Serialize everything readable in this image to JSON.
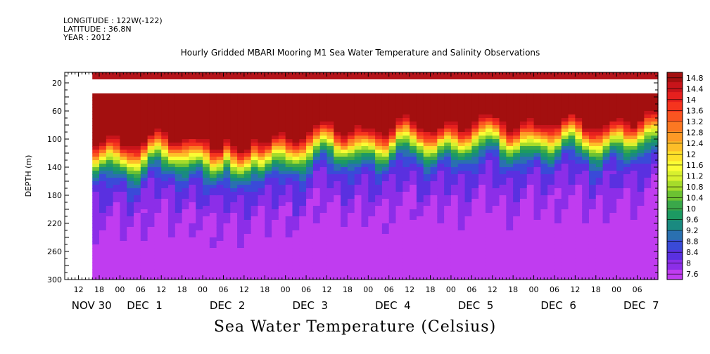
{
  "header": {
    "longitude": "LONGITUDE : 122W(-122)",
    "latitude": "LATITUDE : 36.8N",
    "year": "YEAR : 2012"
  },
  "chart_data": {
    "type": "heatmap",
    "title": "Hourly Gridded MBARI Mooring M1 Sea Water Temperature and Salinity Observations",
    "xlabel": "Sea Water Temperature (Celsius)",
    "ylabel": "DEPTH (m)",
    "ylim": [
      300,
      5
    ],
    "y_ticks": [
      20,
      60,
      100,
      140,
      180,
      220,
      260,
      300
    ],
    "x_range_hours": [
      "2012-11-30 08:00",
      "2012-12-07 12:00"
    ],
    "x_hour_ticks": [
      "12",
      "18",
      "00",
      "06",
      "12",
      "18",
      "00",
      "06",
      "12",
      "18",
      "00",
      "06",
      "12",
      "18",
      "00",
      "06",
      "12",
      "18",
      "00",
      "06",
      "12",
      "18",
      "00",
      "06",
      "12",
      "18",
      "00",
      "06"
    ],
    "x_day_labels": [
      "NOV 30",
      "DEC  1",
      "DEC  2",
      "DEC  3",
      "DEC  4",
      "DEC  5",
      "DEC  6",
      "DEC  7"
    ],
    "data_start": "2012-11-30 16:00",
    "missing_depth_band": [
      15,
      35
    ],
    "colorbar_labels": [
      "14.8",
      "14.4",
      "14",
      "13.6",
      "13.2",
      "12.8",
      "12.4",
      "12",
      "11.6",
      "11.2",
      "10.8",
      "10.4",
      "10",
      "9.6",
      "9.2",
      "8.8",
      "8.4",
      "8",
      "7.6"
    ],
    "colorbar_colors": [
      "#a30f0f",
      "#c8141a",
      "#e6201e",
      "#f5341e",
      "#fa5520",
      "#fc7822",
      "#fd9a26",
      "#fdbe28",
      "#fde02a",
      "#fafc34",
      "#d8f02e",
      "#a6dc2a",
      "#6cc232",
      "#3aa84a",
      "#1c9a62",
      "#1a8a80",
      "#2a70b0",
      "#3a4ad8",
      "#5a30e0",
      "#8c2ee8",
      "#c03cf0"
    ],
    "thermocline_depth_by_day": [
      {
        "day": "NOV 30",
        "depth_12C": 130
      },
      {
        "day": "DEC 1",
        "depth_12C": 125
      },
      {
        "day": "DEC 2",
        "depth_12C": 128
      },
      {
        "day": "DEC 3",
        "depth_12C": 112
      },
      {
        "day": "DEC 4",
        "depth_12C": 108
      },
      {
        "day": "DEC 5",
        "depth_12C": 102
      },
      {
        "day": "DEC 6",
        "depth_12C": 104
      },
      {
        "day": "DEC 7",
        "depth_12C": 98
      }
    ]
  }
}
